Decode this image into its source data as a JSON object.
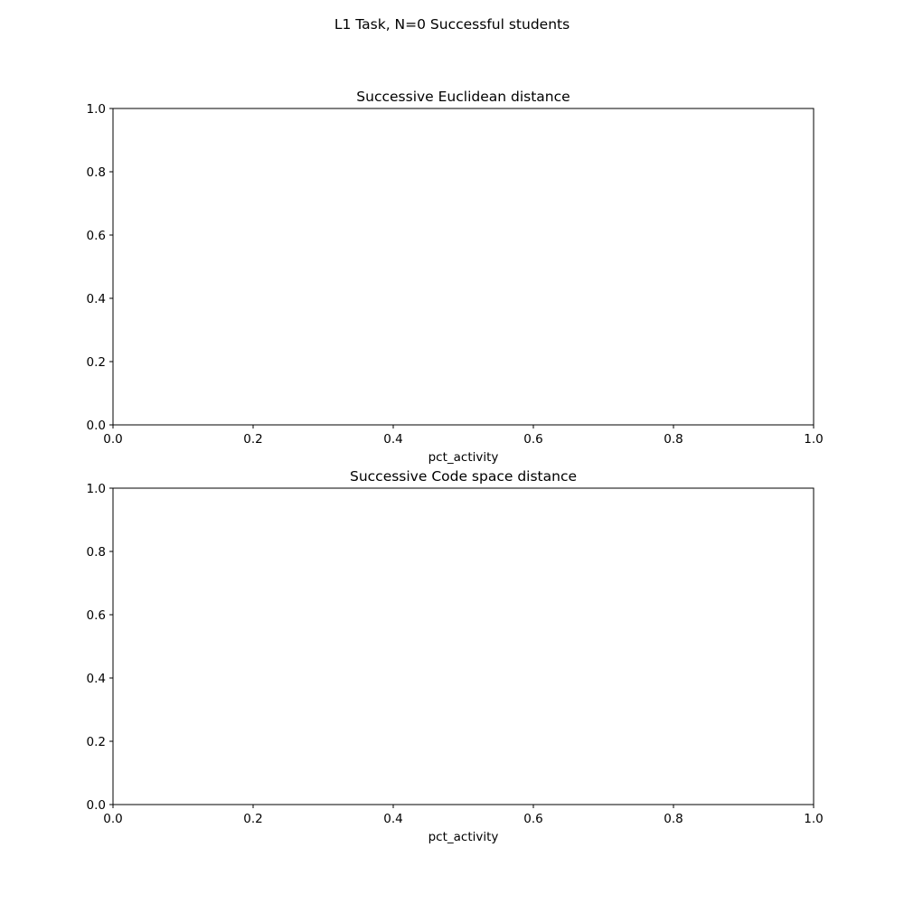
{
  "figure": {
    "suptitle": "L1 Task, N=0 Successful students"
  },
  "chart_data": [
    {
      "type": "line",
      "title": "Successive Euclidean distance",
      "xlabel": "pct_activity",
      "ylabel": "",
      "xlim": [
        0.0,
        1.0
      ],
      "ylim": [
        0.0,
        1.0
      ],
      "x_ticks": [
        "0.0",
        "0.2",
        "0.4",
        "0.6",
        "0.8",
        "1.0"
      ],
      "y_ticks": [
        "0.0",
        "0.2",
        "0.4",
        "0.6",
        "0.8",
        "1.0"
      ],
      "grid": false,
      "series": []
    },
    {
      "type": "line",
      "title": "Successive Code space distance",
      "xlabel": "pct_activity",
      "ylabel": "",
      "xlim": [
        0.0,
        1.0
      ],
      "ylim": [
        0.0,
        1.0
      ],
      "x_ticks": [
        "0.0",
        "0.2",
        "0.4",
        "0.6",
        "0.8",
        "1.0"
      ],
      "y_ticks": [
        "0.0",
        "0.2",
        "0.4",
        "0.6",
        "0.8",
        "1.0"
      ],
      "grid": false,
      "series": []
    }
  ]
}
